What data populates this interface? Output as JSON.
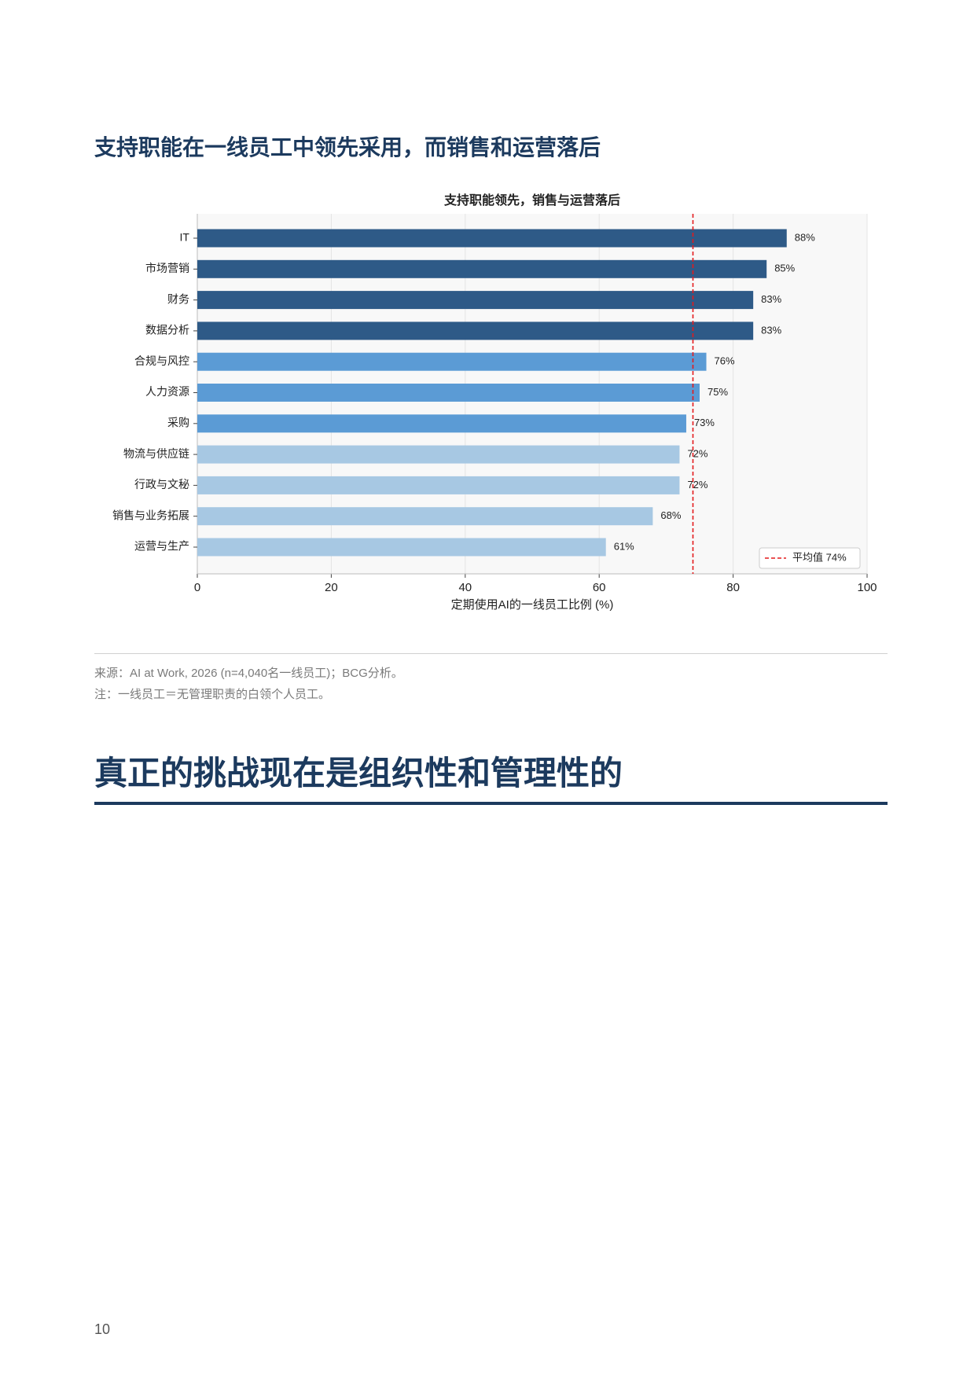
{
  "heading": "支持职能在一线员工中领先采用，而销售和运营落后",
  "chart_data": {
    "type": "barh",
    "title": "支持职能领先，销售与运营落后",
    "categories": [
      "IT",
      "市场营销",
      "财务",
      "数据分析",
      "合规与风控",
      "人力资源",
      "采购",
      "物流与供应链",
      "行政与文秘",
      "销售与业务拓展",
      "运营与生产"
    ],
    "values": [
      88,
      85,
      83,
      83,
      76,
      75,
      73,
      72,
      72,
      68,
      61
    ],
    "value_labels": [
      "88%",
      "85%",
      "83%",
      "83%",
      "76%",
      "75%",
      "73%",
      "72%",
      "72%",
      "68%",
      "61%"
    ],
    "colors": [
      "#2e5a87",
      "#2e5a87",
      "#2e5a87",
      "#2e5a87",
      "#5b9bd5",
      "#5b9bd5",
      "#5b9bd5",
      "#a7c8e3",
      "#a7c8e3",
      "#a7c8e3",
      "#a7c8e3"
    ],
    "xlabel": "定期使用AI的一线员工比例 (%)",
    "xlim": [
      0,
      100
    ],
    "xticks": [
      0,
      20,
      40,
      60,
      80,
      100
    ],
    "grid": true,
    "average": {
      "value": 74,
      "label": "平均值 74%",
      "color": "#e31a1c"
    },
    "legend": "lower right"
  },
  "notes": [
    "来源：AI at Work, 2026 (n=4,040名一线员工)；BCG分析。",
    "注：一线员工＝无管理职责的白领个人员工。"
  ],
  "section_title": "真正的挑战现在是组织性和管理性的",
  "page_number": "10"
}
